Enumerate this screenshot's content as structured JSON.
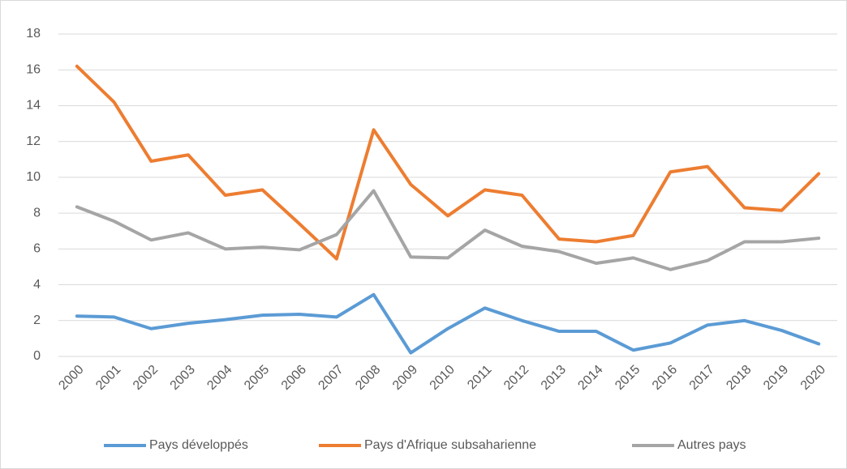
{
  "chart_data": {
    "type": "line",
    "categories": [
      "2000",
      "2001",
      "2002",
      "2003",
      "2004",
      "2005",
      "2006",
      "2007",
      "2008",
      "2009",
      "2010",
      "2011",
      "2012",
      "2013",
      "2014",
      "2015",
      "2016",
      "2017",
      "2018",
      "2019",
      "2020"
    ],
    "series": [
      {
        "name": "Pays développés",
        "color": "#5b9bd5",
        "values": [
          2.25,
          2.2,
          1.55,
          1.85,
          2.05,
          2.3,
          2.35,
          2.2,
          3.45,
          0.2,
          1.55,
          2.7,
          2.0,
          1.4,
          1.4,
          0.35,
          0.75,
          1.75,
          2.0,
          1.45,
          0.7
        ]
      },
      {
        "name": "Pays d'Afrique subsaharienne",
        "color": "#ed7d31",
        "values": [
          16.2,
          14.2,
          10.9,
          11.25,
          9.0,
          9.3,
          7.4,
          5.45,
          12.65,
          9.6,
          7.85,
          9.3,
          9.0,
          6.55,
          6.4,
          6.75,
          10.3,
          10.6,
          8.3,
          8.15,
          10.2
        ]
      },
      {
        "name": "Autres pays",
        "color": "#a5a5a5",
        "values": [
          8.35,
          7.55,
          6.5,
          6.9,
          6.0,
          6.1,
          5.95,
          6.8,
          9.25,
          5.55,
          5.5,
          7.05,
          6.15,
          5.85,
          5.2,
          5.5,
          4.85,
          5.35,
          6.4,
          6.4,
          6.6
        ]
      }
    ],
    "ylim": [
      0,
      18
    ],
    "yticks": [
      0,
      2,
      4,
      6,
      8,
      10,
      12,
      14,
      16,
      18
    ],
    "grid": true,
    "legend": "bottom"
  }
}
